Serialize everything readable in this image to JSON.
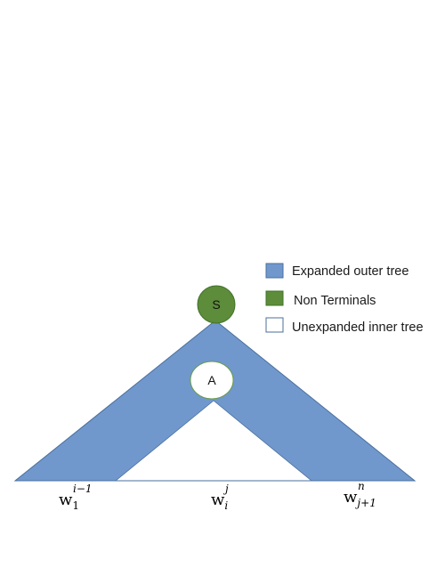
{
  "colors": {
    "outer_tree_fill": "#7098cc",
    "outer_tree_stroke": "#4a6f9e",
    "nonterminal_fill": "#5d8c3a",
    "nonterminal_stroke": "#41732a",
    "inner_tree_fill": "#ffffff",
    "inner_tree_stroke": "#4a6f9e",
    "inner_node_stroke": "#6a9a48",
    "baseline": "#4a6f9e"
  },
  "legend": {
    "items": [
      {
        "label": "Expanded outer tree",
        "swatch": "outer"
      },
      {
        "label": "Non Terminals",
        "swatch": "nonterminal"
      },
      {
        "label": "Unexpanded inner tree",
        "swatch": "inner"
      }
    ]
  },
  "nodes": {
    "root": {
      "label": "S"
    },
    "inner": {
      "label": "A"
    }
  },
  "words": {
    "left": {
      "base": "w",
      "sub": "1",
      "sup": "i−1"
    },
    "middle": {
      "base": "w",
      "sub": "i",
      "sup": "j"
    },
    "right": {
      "base": "w",
      "sub": "j+1",
      "sup": "n"
    }
  }
}
